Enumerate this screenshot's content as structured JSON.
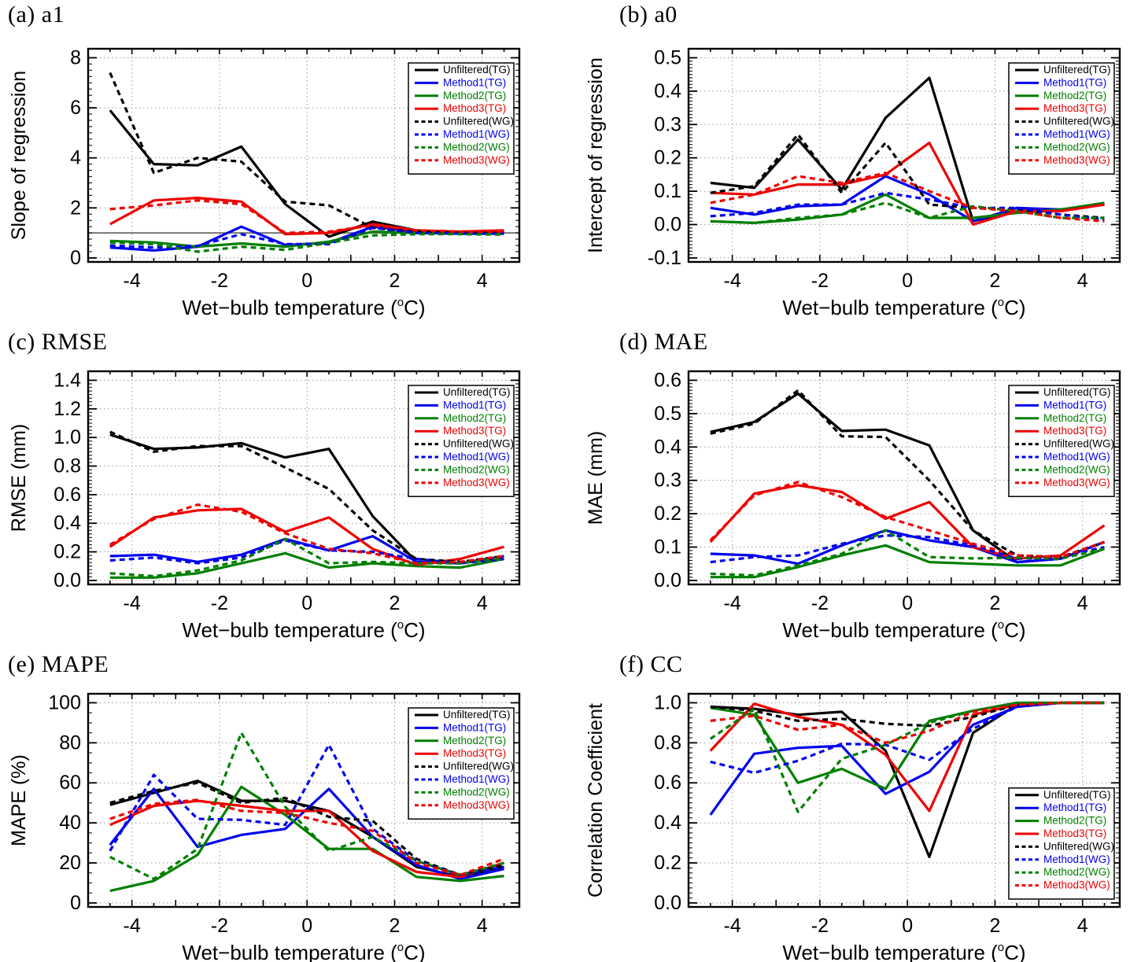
{
  "chart_data": {
    "type": "line",
    "x_label": {
      "pre": "Wet−bulb temperature (",
      "sup": "o",
      "post": "C)"
    },
    "x": [
      -4.5,
      -3.5,
      -2.5,
      -1.5,
      -0.5,
      0.5,
      1.5,
      2.5,
      3.5,
      4.5
    ],
    "x_tick_labels": [
      -4,
      -2,
      0,
      2,
      4
    ],
    "xlim": [
      -5.0,
      4.85
    ],
    "grid": "dotted",
    "legend_entries": [
      {
        "key": "unf_tg",
        "label": "Unfiltered(TG)",
        "color": "#000000",
        "dashed": false
      },
      {
        "key": "m1_tg",
        "label": "Method1(TG)",
        "color": "#0000ee",
        "dashed": false
      },
      {
        "key": "m2_tg",
        "label": "Method2(TG)",
        "color": "#007f00",
        "dashed": false
      },
      {
        "key": "m3_tg",
        "label": "Method3(TG)",
        "color": "#ee0000",
        "dashed": false
      },
      {
        "key": "unf_wg",
        "label": "Unfiltered(WG)",
        "color": "#000000",
        "dashed": true
      },
      {
        "key": "m1_wg",
        "label": "Method1(WG)",
        "color": "#0000ee",
        "dashed": true
      },
      {
        "key": "m2_wg",
        "label": "Method2(WG)",
        "color": "#007f00",
        "dashed": true
      },
      {
        "key": "m3_wg",
        "label": "Method3(WG)",
        "color": "#ee0000",
        "dashed": true
      }
    ],
    "panels": [
      {
        "id": "a",
        "title": "(a) a1",
        "ylabel": "Slope of regression",
        "yticks": [
          0,
          2,
          4,
          6,
          8
        ],
        "ydecimals": 0,
        "minor_step": 0.25,
        "legend": "top-right",
        "ref_line": 1,
        "series": {
          "unf_tg": [
            5.9,
            3.75,
            3.7,
            4.45,
            2.15,
            0.85,
            1.45,
            1.1,
            1.0,
            1.05
          ],
          "m1_tg": [
            0.42,
            0.3,
            0.45,
            1.25,
            0.52,
            0.6,
            1.25,
            1.05,
            1.0,
            1.0
          ],
          "m2_tg": [
            0.68,
            0.62,
            0.45,
            0.58,
            0.45,
            0.65,
            1.05,
            1.0,
            0.98,
            0.98
          ],
          "m3_tg": [
            1.35,
            2.3,
            2.4,
            2.25,
            0.95,
            1.0,
            1.35,
            1.1,
            1.05,
            1.1
          ],
          "unf_wg": [
            7.4,
            3.4,
            4.0,
            3.85,
            2.25,
            2.1,
            1.2,
            1.05,
            1.0,
            1.0
          ],
          "m1_wg": [
            0.5,
            0.42,
            0.48,
            0.95,
            0.55,
            0.55,
            1.2,
            1.0,
            0.97,
            0.97
          ],
          "m2_wg": [
            0.62,
            0.55,
            0.25,
            0.45,
            0.32,
            0.6,
            0.9,
            0.95,
            0.95,
            0.93
          ],
          "m3_wg": [
            1.95,
            2.1,
            2.3,
            2.15,
            1.0,
            1.05,
            1.3,
            1.1,
            1.05,
            1.05
          ]
        }
      },
      {
        "id": "b",
        "title": "(b) a0",
        "ylabel": "Intercept of regression",
        "yticks": [
          -0.1,
          0.0,
          0.1,
          0.2,
          0.3,
          0.4,
          0.5
        ],
        "ydecimals": 1,
        "minor_step": 0.01,
        "legend": "top-right",
        "ref_line": null,
        "series": {
          "unf_tg": [
            0.125,
            0.11,
            0.255,
            0.105,
            0.32,
            0.44,
            0.01,
            0.04,
            0.045,
            0.06
          ],
          "m1_tg": [
            0.05,
            0.03,
            0.055,
            0.06,
            0.145,
            0.09,
            0.01,
            0.05,
            0.045,
            0.06
          ],
          "m2_tg": [
            0.01,
            0.005,
            0.015,
            0.03,
            0.09,
            0.02,
            0.02,
            0.035,
            0.045,
            0.065
          ],
          "m3_tg": [
            0.095,
            0.09,
            0.12,
            0.12,
            0.15,
            0.245,
            0.0,
            0.04,
            0.04,
            0.06
          ],
          "unf_wg": [
            0.095,
            0.115,
            0.27,
            0.095,
            0.245,
            0.06,
            0.05,
            0.045,
            0.03,
            0.02
          ],
          "m1_wg": [
            0.025,
            0.035,
            0.06,
            0.06,
            0.095,
            0.075,
            0.05,
            0.05,
            0.03,
            0.015
          ],
          "m2_wg": [
            0.01,
            0.005,
            0.02,
            0.03,
            0.065,
            0.02,
            0.055,
            0.04,
            0.02,
            0.02
          ],
          "m3_wg": [
            0.065,
            0.09,
            0.145,
            0.125,
            0.155,
            0.1,
            0.05,
            0.04,
            0.02,
            0.01
          ]
        }
      },
      {
        "id": "c",
        "title": "(c) RMSE",
        "ylabel": "RMSE (mm)",
        "yticks": [
          0.0,
          0.2,
          0.4,
          0.6,
          0.8,
          1.0,
          1.2,
          1.4
        ],
        "ydecimals": 1,
        "minor_step": 0.025,
        "legend": "top-right",
        "ref_line": null,
        "series": {
          "unf_tg": [
            1.02,
            0.92,
            0.93,
            0.96,
            0.86,
            0.92,
            0.45,
            0.13,
            0.12,
            0.16
          ],
          "m1_tg": [
            0.17,
            0.18,
            0.13,
            0.18,
            0.29,
            0.21,
            0.31,
            0.13,
            0.12,
            0.17
          ],
          "m2_tg": [
            0.02,
            0.02,
            0.05,
            0.12,
            0.19,
            0.09,
            0.12,
            0.1,
            0.09,
            0.15
          ],
          "m3_tg": [
            0.235,
            0.44,
            0.49,
            0.5,
            0.34,
            0.44,
            0.22,
            0.11,
            0.15,
            0.235
          ],
          "unf_wg": [
            1.04,
            0.9,
            0.94,
            0.94,
            0.79,
            0.64,
            0.35,
            0.15,
            0.13,
            0.17
          ],
          "m1_wg": [
            0.14,
            0.16,
            0.12,
            0.16,
            0.28,
            0.21,
            0.2,
            0.15,
            0.12,
            0.15
          ],
          "m2_wg": [
            0.05,
            0.03,
            0.07,
            0.14,
            0.29,
            0.12,
            0.13,
            0.12,
            0.12,
            0.16
          ],
          "m3_wg": [
            0.25,
            0.43,
            0.53,
            0.48,
            0.33,
            0.22,
            0.19,
            0.12,
            0.13,
            0.17
          ]
        }
      },
      {
        "id": "d",
        "title": "(d) MAE",
        "ylabel": "MAE (mm)",
        "yticks": [
          0.0,
          0.1,
          0.2,
          0.3,
          0.4,
          0.5,
          0.6
        ],
        "ydecimals": 1,
        "minor_step": 0.01,
        "legend": "top-right",
        "ref_line": null,
        "series": {
          "unf_tg": [
            0.445,
            0.475,
            0.56,
            0.448,
            0.452,
            0.405,
            0.15,
            0.055,
            0.065,
            0.115
          ],
          "m1_tg": [
            0.08,
            0.075,
            0.05,
            0.105,
            0.15,
            0.12,
            0.1,
            0.055,
            0.065,
            0.115
          ],
          "m2_tg": [
            0.01,
            0.01,
            0.04,
            0.075,
            0.105,
            0.055,
            0.05,
            0.045,
            0.045,
            0.095
          ],
          "m3_tg": [
            0.115,
            0.26,
            0.285,
            0.265,
            0.185,
            0.235,
            0.1,
            0.065,
            0.075,
            0.165
          ],
          "unf_wg": [
            0.44,
            0.47,
            0.57,
            0.432,
            0.43,
            0.3,
            0.15,
            0.075,
            0.07,
            0.115
          ],
          "m1_wg": [
            0.055,
            0.07,
            0.075,
            0.11,
            0.135,
            0.13,
            0.105,
            0.065,
            0.07,
            0.1
          ],
          "m2_wg": [
            0.02,
            0.015,
            0.045,
            0.08,
            0.15,
            0.07,
            0.066,
            0.068,
            0.065,
            0.095
          ],
          "m3_wg": [
            0.12,
            0.255,
            0.295,
            0.25,
            0.19,
            0.15,
            0.11,
            0.075,
            0.07,
            0.115
          ]
        }
      },
      {
        "id": "e",
        "title": "(e) MAPE",
        "ylabel": "MAPE (%)",
        "yticks": [
          0,
          20,
          40,
          60,
          80,
          100
        ],
        "ydecimals": 0,
        "minor_step": 5,
        "legend": "top-right",
        "ref_line": null,
        "series": {
          "unf_tg": [
            49,
            55,
            61,
            51,
            51,
            46,
            33,
            18,
            13,
            18
          ],
          "m1_tg": [
            29,
            57,
            28,
            34,
            37,
            57,
            33,
            19,
            12,
            17
          ],
          "m2_tg": [
            6,
            11,
            24,
            58,
            44,
            27,
            27,
            13,
            11,
            13.5
          ],
          "m3_tg": [
            39,
            48.5,
            51,
            48.5,
            46,
            46,
            26,
            15.5,
            13,
            20
          ],
          "unf_wg": [
            50,
            56,
            60,
            50,
            52.5,
            43,
            41,
            22,
            14,
            19
          ],
          "m1_wg": [
            26,
            64,
            42,
            41.5,
            39,
            79,
            37,
            21,
            14,
            18
          ],
          "m2_wg": [
            23,
            12,
            27,
            85,
            48,
            26,
            33,
            21,
            14,
            20
          ],
          "m3_wg": [
            42,
            49.5,
            51.5,
            46,
            45,
            40,
            36,
            20,
            14,
            22
          ]
        }
      },
      {
        "id": "f",
        "title": "(f) CC",
        "ylabel": "Correlation Coefficient",
        "yticks": [
          0.0,
          0.2,
          0.4,
          0.6,
          0.8,
          1.0
        ],
        "ydecimals": 1,
        "minor_step": 0.025,
        "legend": "bottom-right",
        "ref_line": null,
        "series": {
          "unf_tg": [
            0.98,
            0.97,
            0.94,
            0.955,
            0.76,
            0.23,
            0.85,
            0.99,
            1.0,
            1.0
          ],
          "m1_tg": [
            0.44,
            0.745,
            0.775,
            0.785,
            0.545,
            0.655,
            0.89,
            0.98,
            1.0,
            1.0
          ],
          "m2_tg": [
            0.975,
            0.94,
            0.6,
            0.67,
            0.57,
            0.91,
            0.96,
            1.0,
            1.0,
            1.0
          ],
          "m3_tg": [
            0.76,
            0.995,
            0.93,
            0.89,
            0.74,
            0.46,
            0.94,
            0.99,
            1.0,
            1.0
          ],
          "unf_wg": [
            0.98,
            0.96,
            0.91,
            0.92,
            0.895,
            0.885,
            0.93,
            0.99,
            1.0,
            1.0
          ],
          "m1_wg": [
            0.705,
            0.65,
            0.71,
            0.795,
            0.79,
            0.715,
            0.87,
            0.98,
            1.0,
            1.0
          ],
          "m2_wg": [
            0.82,
            0.97,
            0.455,
            0.72,
            0.79,
            0.9,
            0.96,
            1.0,
            1.0,
            1.0
          ],
          "m3_wg": [
            0.91,
            0.935,
            0.865,
            0.89,
            0.8,
            0.86,
            0.955,
            0.99,
            1.0,
            1.0
          ]
        }
      }
    ],
    "colors": {
      "black": "#000000",
      "blue": "#0000ee",
      "green": "#007f00",
      "red": "#ee0000",
      "grid": "#999999",
      "ref_line": "#777777"
    }
  }
}
